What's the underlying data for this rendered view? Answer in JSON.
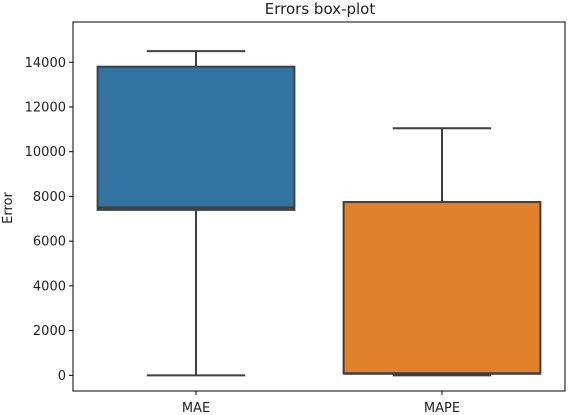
{
  "chart_data": {
    "type": "box",
    "title": "Errors box-plot",
    "xlabel": "",
    "ylabel": "Error",
    "ylim": [
      -700,
      15800
    ],
    "yticks": [
      0,
      2000,
      4000,
      6000,
      8000,
      10000,
      12000,
      14000
    ],
    "categories": [
      "MAE",
      "MAPE"
    ],
    "boxes": [
      {
        "label": "MAE",
        "min": 0,
        "q1": 7400,
        "median": 7500,
        "q3": 13800,
        "max": 14500,
        "color": "#3274a1"
      },
      {
        "label": "MAPE",
        "min": 0,
        "q1": 80,
        "median": 80,
        "q3": 7750,
        "max": 11050,
        "color": "#e1812c"
      }
    ],
    "grid": false,
    "legend": "none",
    "line_color": "#3f3f3f"
  }
}
